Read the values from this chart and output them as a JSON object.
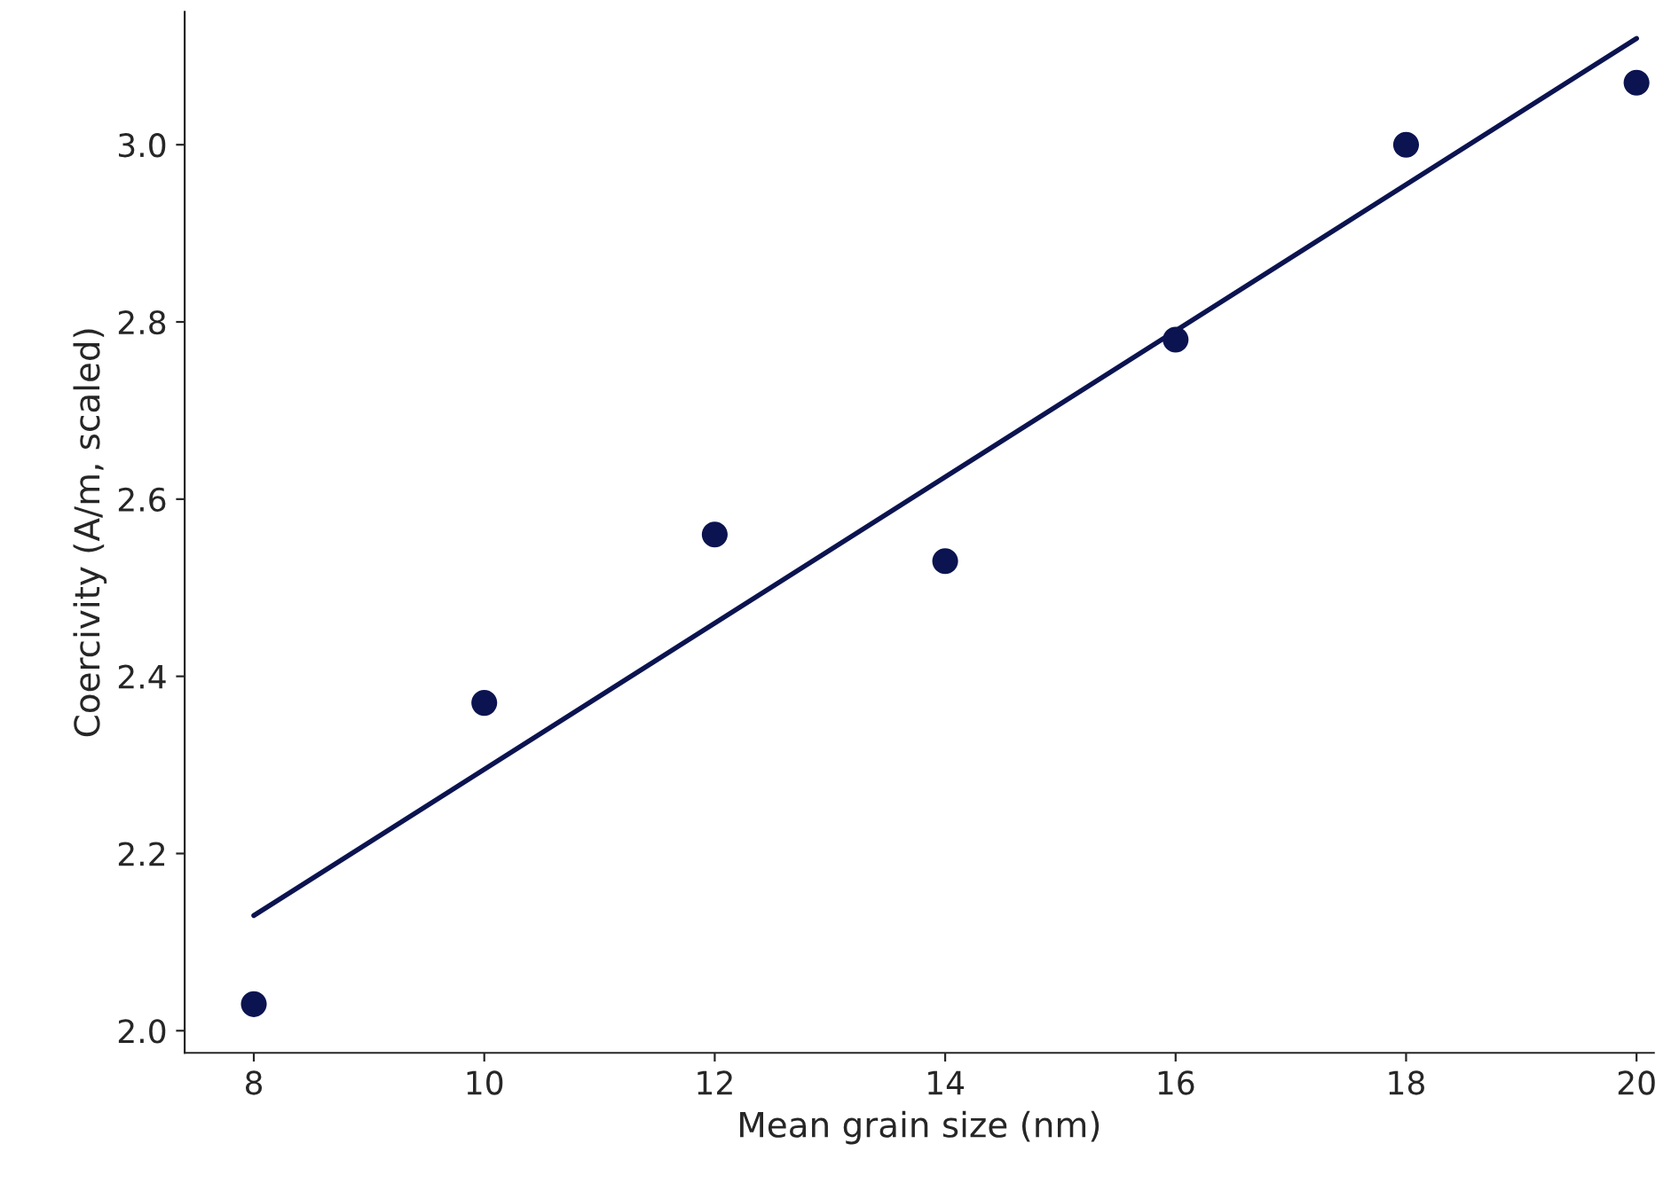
{
  "chart_data": {
    "type": "scatter",
    "xlabel": "Mean grain size (nm)",
    "ylabel": "Coercivity (A/m, scaled)",
    "x": [
      8,
      10,
      12,
      14,
      16,
      18,
      20
    ],
    "series": [
      {
        "color": "#0b1450",
        "marker": "circle",
        "values": [
          2.03,
          2.37,
          2.56,
          2.53,
          2.78,
          3.0,
          3.07
        ]
      },
      {
        "type": "line",
        "color": "#0b1450",
        "marker": "none",
        "line_style": "solid",
        "x": [
          8,
          20
        ],
        "values": [
          2.13,
          3.12
        ]
      }
    ],
    "xlim": [
      7.4,
      20.15
    ],
    "ylim": [
      1.975,
      3.15
    ],
    "xticks": [
      8,
      10,
      12,
      14,
      16,
      18,
      20
    ],
    "yticks": [
      {
        "value": 2.0,
        "label": "2.0"
      },
      {
        "value": 2.2,
        "label": "2.2"
      },
      {
        "value": 2.4,
        "label": "2.4"
      },
      {
        "value": 2.6,
        "label": "2.6"
      },
      {
        "value": 2.8,
        "label": "2.8"
      },
      {
        "value": 3.0,
        "label": "3.0"
      }
    ],
    "grid": false,
    "legend": false
  }
}
